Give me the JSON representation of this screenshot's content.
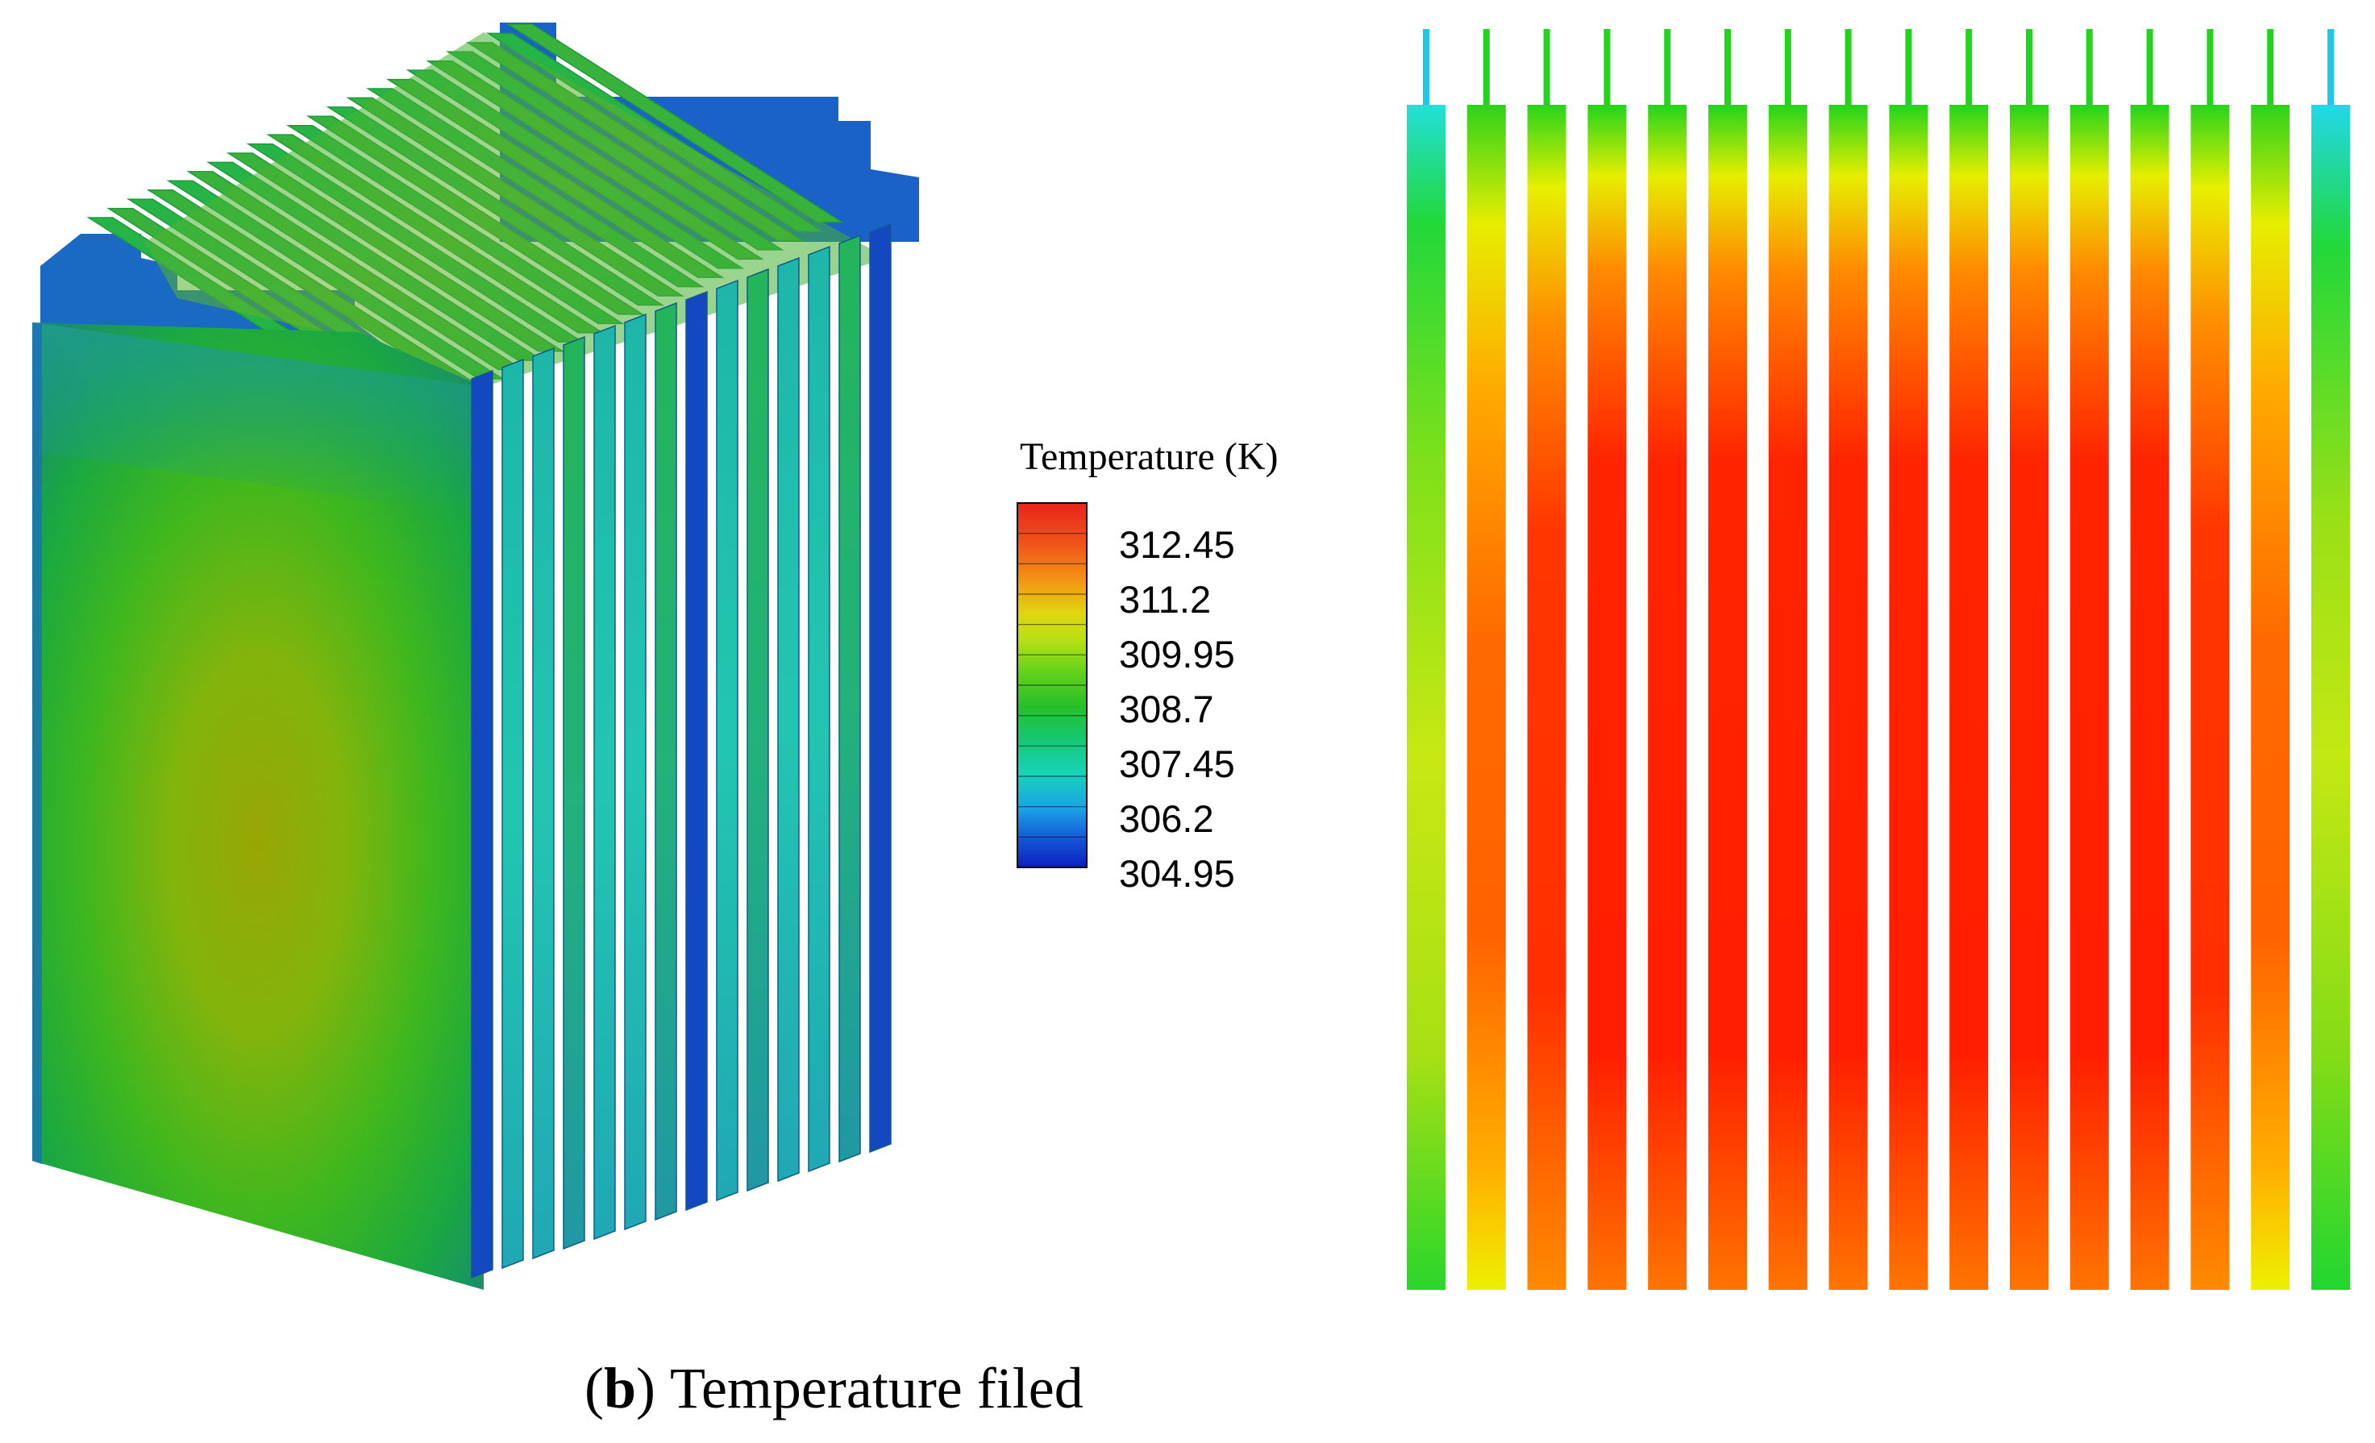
{
  "legend": {
    "title": "Temperature (K)",
    "ticks": [
      "312.45",
      "311.2",
      "309.95",
      "308.7",
      "307.45",
      "306.2",
      "304.95"
    ],
    "colors_top_to_bottom": [
      "#e8241a",
      "#f0581a",
      "#f39a14",
      "#e0d50f",
      "#b6e014",
      "#66d21a",
      "#26c02a",
      "#16c76d",
      "#18d3b8",
      "#1aa2e6",
      "#1558d6",
      "#0a1fbf"
    ]
  },
  "caption": {
    "open": "(",
    "letter": "b",
    "close": ")",
    "text": "Temperature filed"
  },
  "colors": {
    "hot": "#ff1a00",
    "warm": "#ff7a00",
    "mid": "#e8f000",
    "cool_green": "#22d020",
    "cyan": "#19dcdc",
    "blue": "#1446c8",
    "olive_core": "#9aa808"
  }
}
